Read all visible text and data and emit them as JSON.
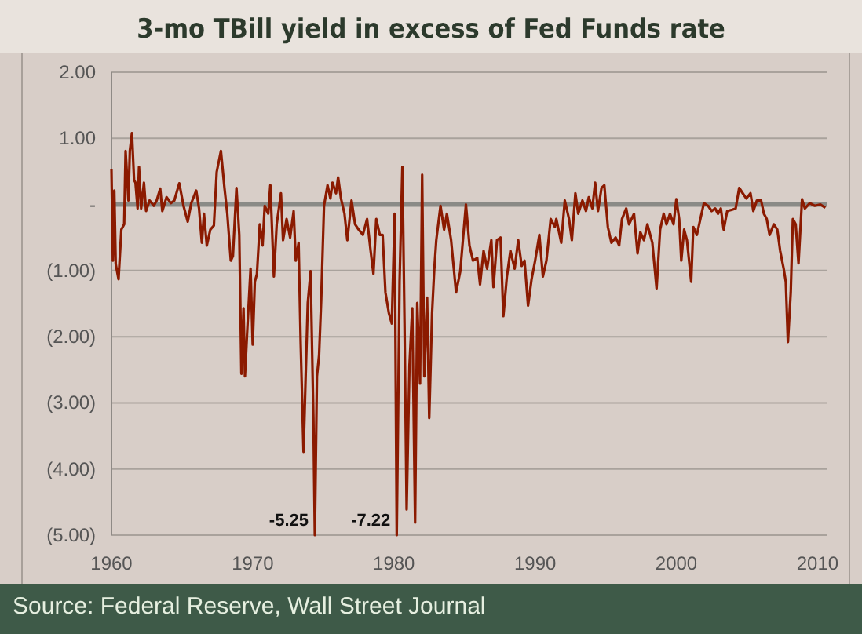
{
  "chart_data": {
    "type": "line",
    "title": "3-mo TBill yield in excess of Fed Funds rate",
    "x": [
      1960.0,
      1960.1,
      1960.2,
      1960.3,
      1960.5,
      1960.7,
      1960.9,
      1961.0,
      1961.2,
      1961.3,
      1961.45,
      1961.6,
      1961.7,
      1961.85,
      1961.95,
      1962.1,
      1962.3,
      1962.45,
      1962.7,
      1963.0,
      1963.2,
      1963.45,
      1963.6,
      1963.9,
      1964.2,
      1964.45,
      1964.8,
      1965.1,
      1965.4,
      1965.65,
      1966.0,
      1966.2,
      1966.4,
      1966.55,
      1966.75,
      1967.0,
      1967.25,
      1967.45,
      1967.75,
      1968.0,
      1968.2,
      1968.45,
      1968.6,
      1968.85,
      1969.05,
      1969.2,
      1969.35,
      1969.45,
      1969.6,
      1969.85,
      1970.0,
      1970.15,
      1970.3,
      1970.5,
      1970.7,
      1970.85,
      1971.1,
      1971.25,
      1971.5,
      1971.7,
      1972.0,
      1972.15,
      1972.4,
      1972.65,
      1972.9,
      1973.05,
      1973.25,
      1973.4,
      1973.6,
      1973.75,
      1973.9,
      1974.1,
      1974.3,
      1974.4,
      1974.55,
      1974.7,
      1974.85,
      1975.05,
      1975.3,
      1975.5,
      1975.65,
      1975.9,
      1976.05,
      1976.25,
      1976.5,
      1976.7,
      1977.0,
      1977.25,
      1977.5,
      1977.8,
      1978.1,
      1978.35,
      1978.55,
      1978.75,
      1979.0,
      1979.2,
      1979.4,
      1979.65,
      1979.85,
      1980.05,
      1980.2,
      1980.4,
      1980.6,
      1980.75,
      1980.9,
      1981.1,
      1981.3,
      1981.5,
      1981.65,
      1981.85,
      1982.0,
      1982.15,
      1982.35,
      1982.5,
      1982.7,
      1982.85,
      1983.0,
      1983.3,
      1983.55,
      1983.75,
      1984.05,
      1984.4,
      1984.7,
      1985.1,
      1985.35,
      1985.6,
      1985.9,
      1986.1,
      1986.35,
      1986.6,
      1986.9,
      1987.05,
      1987.3,
      1987.55,
      1987.75,
      1988.0,
      1988.25,
      1988.55,
      1988.8,
      1989.05,
      1989.25,
      1989.5,
      1989.75,
      1990.0,
      1990.3,
      1990.55,
      1990.8,
      1991.1,
      1991.4,
      1991.5,
      1991.85,
      1992.1,
      1992.4,
      1992.6,
      1992.85,
      1993.05,
      1993.35,
      1993.6,
      1993.8,
      1994.05,
      1994.25,
      1994.45,
      1994.7,
      1994.9,
      1995.15,
      1995.4,
      1995.7,
      1995.95,
      1996.15,
      1996.45,
      1996.65,
      1997.0,
      1997.25,
      1997.45,
      1997.7,
      1997.95,
      1998.3,
      1998.6,
      1998.85,
      1999.1,
      1999.3,
      1999.55,
      1999.8,
      2000.0,
      2000.2,
      2000.35,
      2000.55,
      2000.75,
      2001.05,
      2001.2,
      2001.45,
      2001.7,
      2001.95,
      2002.25,
      2002.5,
      2002.75,
      2002.95,
      2003.15,
      2003.35,
      2003.6,
      2003.95,
      2004.2,
      2004.45,
      2004.7,
      2004.95,
      2005.25,
      2005.45,
      2005.7,
      2006.0,
      2006.2,
      2006.4,
      2006.6,
      2006.9,
      2007.15,
      2007.35,
      2007.6,
      2007.75,
      2007.9,
      2008.1,
      2008.25,
      2008.45,
      2008.65,
      2008.9,
      2009.1,
      2009.45,
      2009.8,
      2010.2,
      2010.55
    ],
    "series": [
      {
        "color": "#8b1a00",
        "values": [
          0.53,
          -0.85,
          0.21,
          -0.9,
          -1.13,
          -0.38,
          -0.3,
          0.81,
          0.06,
          0.81,
          1.08,
          0.37,
          0.33,
          -0.06,
          0.57,
          -0.06,
          0.33,
          -0.1,
          0.06,
          -0.02,
          0.06,
          0.24,
          -0.1,
          0.11,
          0.02,
          0.06,
          0.32,
          -0.02,
          -0.26,
          0.02,
          0.21,
          -0.06,
          -0.58,
          -0.14,
          -0.62,
          -0.38,
          -0.32,
          0.49,
          0.81,
          0.25,
          -0.14,
          -0.85,
          -0.78,
          0.25,
          -0.46,
          -2.56,
          -1.57,
          -2.6,
          -1.96,
          -0.97,
          -2.12,
          -1.17,
          -1.05,
          -0.3,
          -0.62,
          -0.02,
          -0.14,
          0.29,
          -1.09,
          -0.3,
          0.17,
          -0.54,
          -0.22,
          -0.5,
          -0.1,
          -0.85,
          -0.58,
          -2.12,
          -3.74,
          -2.6,
          -1.49,
          -1.01,
          -3.23,
          -5.0,
          -2.6,
          -2.28,
          -1.45,
          -0.02,
          0.29,
          0.09,
          0.33,
          0.17,
          0.41,
          0.09,
          -0.14,
          -0.54,
          0.06,
          -0.3,
          -0.38,
          -0.46,
          -0.22,
          -0.7,
          -1.05,
          -0.22,
          -0.46,
          -0.46,
          -1.33,
          -1.65,
          -1.8,
          -0.14,
          -5.0,
          -1.17,
          0.57,
          -1.8,
          -4.61,
          -2.44,
          -1.57,
          -4.81,
          -1.49,
          -2.71,
          0.45,
          -2.6,
          -1.41,
          -3.23,
          -1.65,
          -1.01,
          -0.54,
          -0.02,
          -0.38,
          -0.14,
          -0.54,
          -1.33,
          -1.01,
          0.0,
          -0.62,
          -0.85,
          -0.81,
          -1.21,
          -0.7,
          -0.97,
          -0.54,
          -1.25,
          -0.54,
          -0.5,
          -1.69,
          -1.09,
          -0.7,
          -0.97,
          -0.54,
          -0.93,
          -0.85,
          -1.53,
          -1.13,
          -0.85,
          -0.46,
          -1.09,
          -0.85,
          -0.22,
          -0.34,
          -0.22,
          -0.58,
          0.06,
          -0.22,
          -0.54,
          0.17,
          -0.14,
          0.06,
          -0.1,
          0.11,
          -0.06,
          0.33,
          -0.1,
          0.25,
          0.29,
          -0.34,
          -0.58,
          -0.5,
          -0.62,
          -0.22,
          -0.06,
          -0.3,
          -0.14,
          -0.74,
          -0.42,
          -0.54,
          -0.3,
          -0.58,
          -1.27,
          -0.38,
          -0.14,
          -0.3,
          -0.14,
          -0.3,
          0.08,
          -0.22,
          -0.85,
          -0.38,
          -0.54,
          -1.17,
          -0.34,
          -0.46,
          -0.22,
          0.02,
          -0.02,
          -0.1,
          -0.06,
          -0.14,
          -0.06,
          -0.38,
          -0.1,
          -0.08,
          -0.06,
          0.25,
          0.17,
          0.09,
          0.17,
          -0.1,
          0.06,
          0.06,
          -0.14,
          -0.22,
          -0.46,
          -0.3,
          -0.38,
          -0.7,
          -0.97,
          -1.17,
          -2.08,
          -1.33,
          -0.22,
          -0.3,
          -0.89,
          0.08,
          -0.06,
          0.02,
          -0.02,
          0.0,
          -0.05
        ]
      }
    ],
    "xlim": [
      1960,
      2010.7
    ],
    "xticks": [
      1960,
      1970,
      1980,
      1990,
      2000,
      2010
    ],
    "ylim": [
      -5,
      2
    ],
    "yticks": [
      {
        "value": 2,
        "label": "2.00"
      },
      {
        "value": 1,
        "label": "1.00"
      },
      {
        "value": 0,
        "label": "-"
      },
      {
        "value": -1,
        "label": "(1.00)"
      },
      {
        "value": -2,
        "label": "(2.00)"
      },
      {
        "value": -3,
        "label": "(3.00)"
      },
      {
        "value": -4,
        "label": "(4.00)"
      },
      {
        "value": -5,
        "label": "(5.00)"
      }
    ],
    "grid": "y",
    "line_style": "solid",
    "marker": "none",
    "ref_lines": [
      {
        "axis": "y",
        "value": 0,
        "color": "#8a8a86"
      }
    ],
    "annotations": [
      {
        "text": "-5.25",
        "x": 1974.4
      },
      {
        "text": "-7.22",
        "x": 1980.2
      },
      "Source: Federal Reserve, Wall Street Journal"
    ]
  }
}
